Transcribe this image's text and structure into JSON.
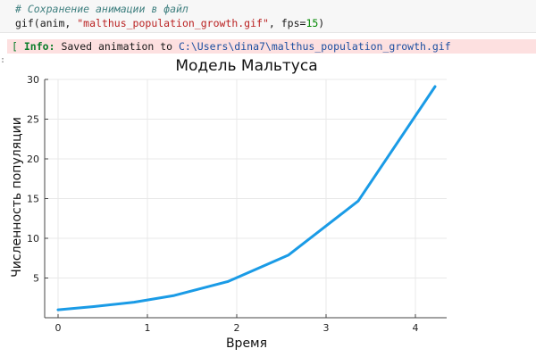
{
  "code_cell": {
    "comment": "# Сохранение анимации в файл",
    "fn": "gif",
    "args_open": "(anim, ",
    "filename": "\"malthus_population_growth.gif\"",
    "fps_kw": ", fps=",
    "fps_value": "15",
    "close": ")"
  },
  "output": {
    "bracket": "[",
    "label": "Info:",
    "message": "Saved animation to",
    "path": "C:\\Users\\dina7\\malthus_population_growth.gif",
    "prompt": ":"
  },
  "colors": {
    "line": "#1a9be6",
    "axis": "#444444",
    "grid": "#e8e8e8",
    "info_bg": "#fde0e0"
  },
  "chart_data": {
    "type": "line",
    "title": "Модель Мальтуса",
    "xlabel": "Время",
    "ylabel": "Численность популяции",
    "xlim": [
      -0.15,
      4.35
    ],
    "ylim": [
      0,
      30
    ],
    "xticks": [
      0,
      1,
      2,
      3,
      4
    ],
    "yticks": [
      5,
      10,
      15,
      20,
      25,
      30
    ],
    "grid": true,
    "legend": "none",
    "series": [
      {
        "x": [
          0,
          0.4,
          0.85,
          1.3,
          1.9,
          2.58,
          3.36,
          4.22
        ],
        "y": [
          1.0,
          1.4,
          1.95,
          2.8,
          4.55,
          7.9,
          14.7,
          29.1
        ]
      }
    ]
  }
}
